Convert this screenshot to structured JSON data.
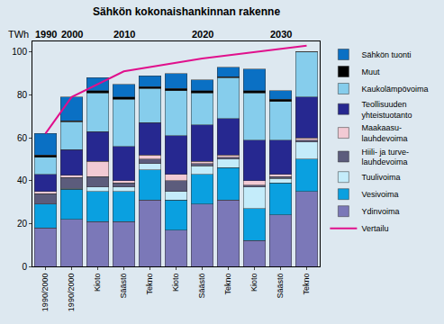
{
  "chart_data": {
    "type": "bar",
    "stacked": true,
    "title": "Sähkön kokonaishankinnan rakenne",
    "y_label": "TWh",
    "categories": [
      "1990/2000",
      "1990/2000",
      "Kioto",
      "Säästö",
      "Tekno",
      "Kioto",
      "Säästö",
      "Tekno",
      "Kioto",
      "Säästö",
      "Tekno"
    ],
    "groups": [
      {
        "label": "1990",
        "start": 0,
        "end": 0
      },
      {
        "label": "2000",
        "start": 1,
        "end": 1
      },
      {
        "label": "2010",
        "start": 2,
        "end": 4
      },
      {
        "label": "2020",
        "start": 5,
        "end": 7
      },
      {
        "label": "2030",
        "start": 8,
        "end": 10
      }
    ],
    "ylim": [
      0,
      105
    ],
    "yticks": [
      0,
      20,
      40,
      60,
      80,
      100
    ],
    "grid": false,
    "legend": "right",
    "series": [
      {
        "name": "Ydinvoima",
        "color": "#7b78b8",
        "values": [
          18,
          22,
          21,
          21,
          31,
          17,
          29,
          31,
          12,
          24,
          35
        ]
      },
      {
        "name": "Vesivoima",
        "color": "#0aa0e0",
        "values": [
          11,
          14,
          14,
          14,
          14,
          14,
          14,
          15,
          15,
          15,
          15
        ]
      },
      {
        "name": "Tuulivoima",
        "color": "#c4ecfa",
        "values": [
          0,
          0.5,
          2,
          2,
          3,
          4,
          4,
          4,
          10,
          2,
          8
        ]
      },
      {
        "name": "Hiili- ja turve-\nlauhdevoima",
        "color": "#5c5c7c",
        "values": [
          5,
          5,
          5,
          2,
          2,
          5,
          1,
          1,
          1,
          1,
          1
        ]
      },
      {
        "name": "Maakaasu-\nlauhdevoima",
        "color": "#f2cad4",
        "values": [
          1,
          1,
          7,
          1,
          2,
          3,
          1,
          1,
          2,
          1,
          1
        ]
      },
      {
        "name": "Teollisuuden\nyhteistuotanto",
        "color": "#262890",
        "values": [
          8,
          12,
          14,
          16,
          15,
          18,
          17,
          17,
          19,
          16,
          19
        ]
      },
      {
        "name": "Kaukolämpövoima",
        "color": "#86cdec",
        "values": [
          8,
          13,
          18,
          22,
          16,
          21,
          15,
          19,
          22,
          18,
          21
        ]
      },
      {
        "name": "Muut",
        "color": "#000000",
        "values": [
          1,
          0.5,
          1,
          1,
          1,
          1,
          1,
          0.5,
          1,
          1,
          0
        ]
      },
      {
        "name": "Sähkön tuonti",
        "color": "#0a70c4",
        "values": [
          10,
          11,
          6,
          6,
          5,
          7,
          5,
          4.5,
          10,
          4,
          0
        ]
      },
      {
        "name": "Vertailu",
        "type": "line",
        "color": "#e0108c",
        "values": [
          62,
          79,
          null,
          91,
          null,
          null,
          97,
          null,
          null,
          null,
          103
        ]
      }
    ]
  }
}
